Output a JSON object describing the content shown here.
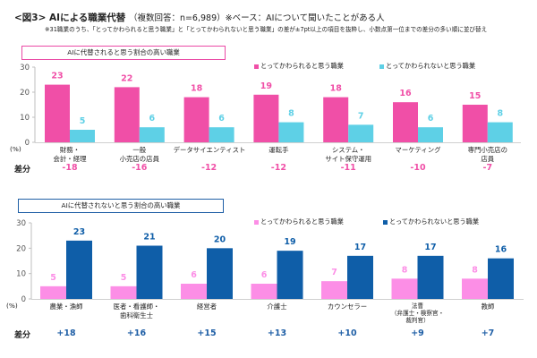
{
  "header": {
    "title": "<図3> AIによる職業代替",
    "subtitle": "（複数回答：n=6,989）※ベース：AIについて聞いたことがある人",
    "note": "※31職業のうち、「とってかわられると思う職業」と「とってかわられないと思う職業」の差が±7pt以上の項目を抜粋し、小数点第一位までの差分の多い順に並び替え"
  },
  "colors": {
    "replaced_top": "#f04fa7",
    "not_replaced_top": "#5ed0e6",
    "replaced_bottom": "#fc8ee6",
    "not_replaced_bottom": "#0f5ea8",
    "diff_top": "#f04fa7",
    "diff_bottom": "#1f5fa6"
  },
  "diff_label": "差分",
  "unit_label": "(%)",
  "chart_data": [
    {
      "type": "bar",
      "title": "AIに代替されると思う割合の高い職業",
      "ylim": [
        0,
        30
      ],
      "yticks": [
        "0",
        "10",
        "20",
        "30"
      ],
      "ytick_values": [
        0,
        10,
        20,
        30
      ],
      "legend": [
        "とってかわられると思う職業",
        "とってかわられないと思う職業"
      ],
      "legend_position": "top-right",
      "categories": [
        [
          "財務・",
          "会計・経理"
        ],
        [
          "一般",
          "小売店の店員"
        ],
        [
          "データサイエンティスト"
        ],
        [
          "運転手"
        ],
        [
          "システム・",
          "サイト保守運用"
        ],
        [
          "マーケティング"
        ],
        [
          "専門小売店の",
          "店員"
        ]
      ],
      "series": [
        {
          "name": "とってかわられると思う職業",
          "values": [
            23,
            22,
            18,
            19,
            18,
            16,
            15
          ],
          "labels": [
            "23",
            "22",
            "18",
            "19",
            "18",
            "16",
            "15"
          ]
        },
        {
          "name": "とってかわられないと思う職業",
          "values": [
            5,
            6,
            6,
            8,
            7,
            6,
            8
          ],
          "labels": [
            "5",
            "6",
            "6",
            "8",
            "7",
            "6",
            "8"
          ]
        }
      ],
      "diffs": [
        "-18",
        "-16",
        "-12",
        "-12",
        "-11",
        "-10",
        "-7"
      ]
    },
    {
      "type": "bar",
      "title": "AIに代替されないと思う割合の高い職業",
      "ylim": [
        0,
        30
      ],
      "yticks": [
        "0",
        "10",
        "20",
        "30"
      ],
      "ytick_values": [
        0,
        10,
        20,
        30
      ],
      "legend": [
        "とってかわられると思う職業",
        "とってかわられないと思う職業"
      ],
      "legend_position": "top-right",
      "categories": [
        [
          "農業・漁師"
        ],
        [
          "医者・看護師・",
          "歯科衛生士"
        ],
        [
          "経営者"
        ],
        [
          "介護士"
        ],
        [
          "カウンセラー"
        ],
        [
          "法曹",
          "（弁護士・検察官・",
          "裁判官）"
        ],
        [
          "教師"
        ]
      ],
      "series": [
        {
          "name": "とってかわられると思う職業",
          "values": [
            5,
            5,
            6,
            6,
            7,
            8,
            8
          ],
          "labels": [
            "5",
            "5",
            "6",
            "6",
            "7",
            "8",
            "8"
          ]
        },
        {
          "name": "とってかわられないと思う職業",
          "values": [
            23,
            21,
            20,
            19,
            17,
            17,
            16
          ],
          "labels": [
            "23",
            "21",
            "20",
            "19",
            "17",
            "17",
            "16"
          ]
        }
      ],
      "diffs": [
        "+18",
        "+16",
        "+15",
        "+13",
        "+10",
        "+9",
        "+7"
      ]
    }
  ]
}
